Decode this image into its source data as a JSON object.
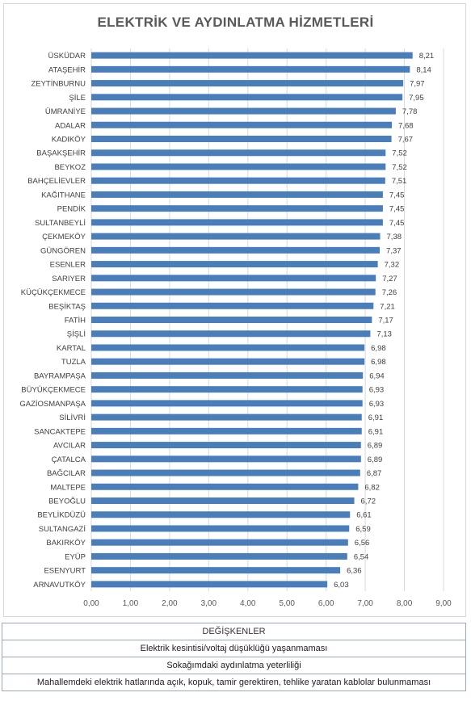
{
  "chart_data": {
    "type": "bar",
    "orientation": "horizontal",
    "title": "ELEKTRİK VE AYDINLATMA HİZMETLERİ",
    "categories": [
      "ÜSKÜDAR",
      "ATAŞEHİR",
      "ZEYTİNBURNU",
      "ŞİLE",
      "ÜMRANİYE",
      "ADALAR",
      "KADIKÖY",
      "BAŞAKŞEHİR",
      "BEYKOZ",
      "BAHÇELİEVLER",
      "KAĞITHANE",
      "PENDİK",
      "SULTANBEYLİ",
      "ÇEKMEKÖY",
      "GÜNGÖREN",
      "ESENLER",
      "SARIYER",
      "KÜÇÜKÇEKMECE",
      "BEŞİKTAŞ",
      "FATİH",
      "ŞİŞLİ",
      "KARTAL",
      "TUZLA",
      "BAYRAMPAŞA",
      "BÜYÜKÇEKMECE",
      "GAZİOSMANPAŞA",
      "SİLİVRİ",
      "SANCAKTEPE",
      "AVCILAR",
      "ÇATALCA",
      "BAĞCILAR",
      "MALTEPE",
      "BEYOĞLU",
      "BEYLİKDÜZÜ",
      "SULTANGAZİ",
      "BAKIRKÖY",
      "EYÜP",
      "ESENYURT",
      "ARNAVUTKÖY"
    ],
    "values": [
      8.21,
      8.14,
      7.97,
      7.95,
      7.78,
      7.68,
      7.67,
      7.52,
      7.52,
      7.51,
      7.45,
      7.45,
      7.45,
      7.38,
      7.37,
      7.32,
      7.27,
      7.26,
      7.21,
      7.17,
      7.13,
      6.98,
      6.98,
      6.94,
      6.93,
      6.93,
      6.91,
      6.91,
      6.89,
      6.89,
      6.87,
      6.82,
      6.72,
      6.61,
      6.59,
      6.56,
      6.54,
      6.36,
      6.03
    ],
    "value_labels": [
      "8,21",
      "8,14",
      "7,97",
      "7,95",
      "7,78",
      "7,68",
      "7,67",
      "7,52",
      "7,52",
      "7,51",
      "7,45",
      "7,45",
      "7,45",
      "7,38",
      "7,37",
      "7,32",
      "7,27",
      "7,26",
      "7,21",
      "7,17",
      "7,13",
      "6,98",
      "6,98",
      "6,94",
      "6,93",
      "6,93",
      "6,91",
      "6,91",
      "6,89",
      "6,89",
      "6,87",
      "6,82",
      "6,72",
      "6,61",
      "6,59",
      "6,56",
      "6,54",
      "6,36",
      "6,03"
    ],
    "xlim": [
      0,
      9
    ],
    "x_ticks": [
      "0,00",
      "1,00",
      "2,00",
      "3,00",
      "4,00",
      "5,00",
      "6,00",
      "7,00",
      "8,00",
      "9,00"
    ],
    "grid": true,
    "bar_color": "#4a7ebb"
  },
  "legend_table": {
    "header": "DEĞİŞKENLER",
    "rows": [
      "Elektrik kesintisi/voltaj düşüklüğü yaşanmaması",
      "Sokağımdaki aydınlatma yeterliliği",
      "Mahallemdeki elektrik hatlarında açık, kopuk, tamir gerektiren, tehlike yaratan kablolar bulunmaması"
    ]
  }
}
